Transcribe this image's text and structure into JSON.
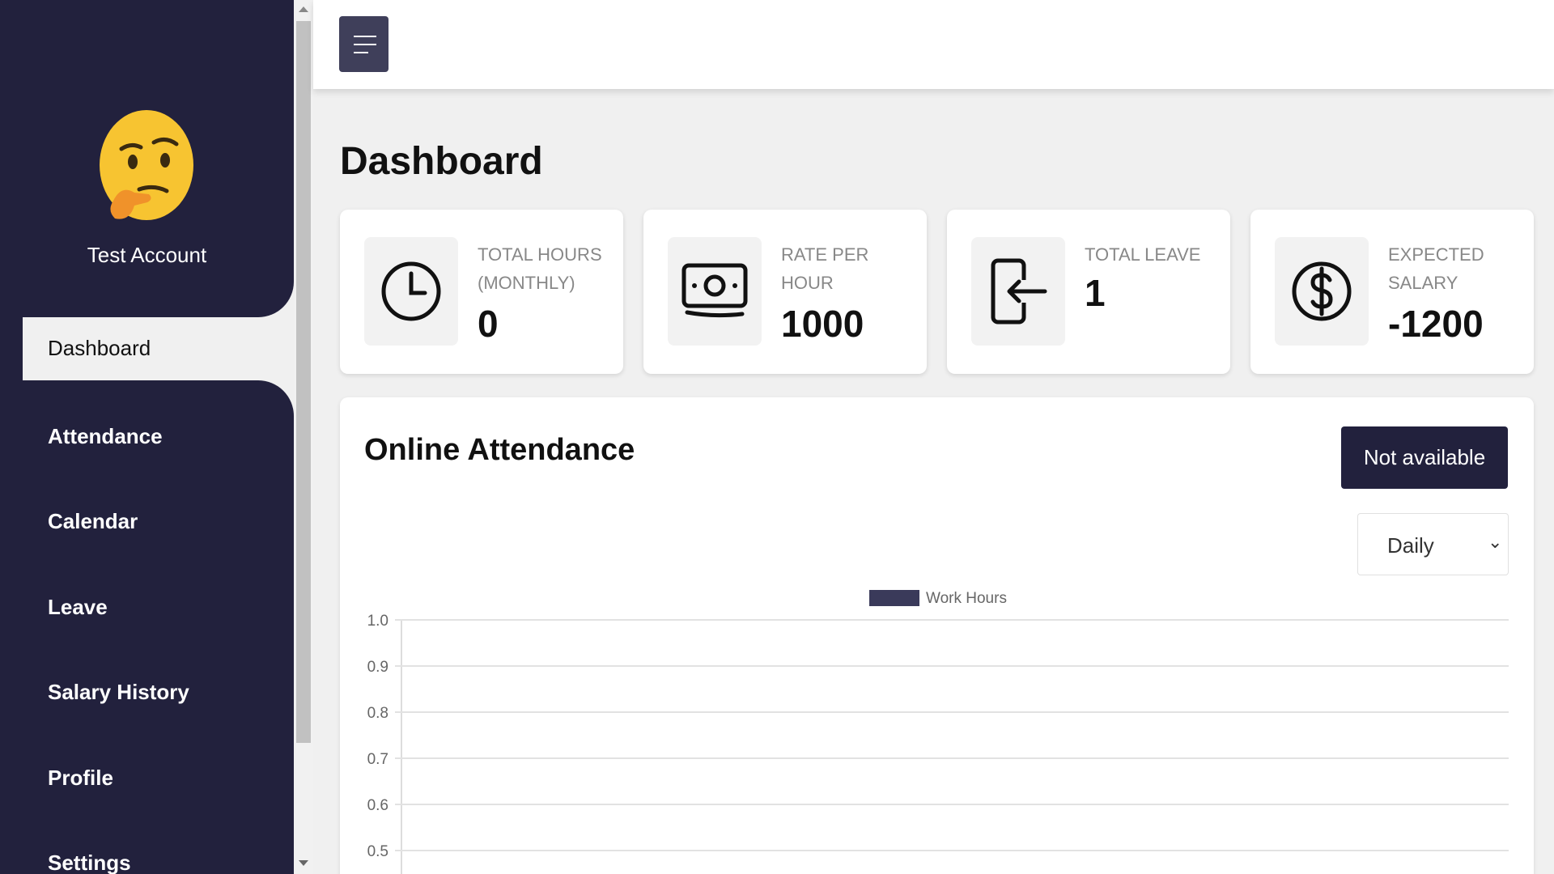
{
  "sidebar": {
    "user_name": "Test Account",
    "items": [
      {
        "label": "Dashboard",
        "active": true
      },
      {
        "label": "Attendance"
      },
      {
        "label": "Calendar"
      },
      {
        "label": "Leave"
      },
      {
        "label": "Salary History"
      },
      {
        "label": "Profile"
      },
      {
        "label": "Settings"
      }
    ]
  },
  "page": {
    "title": "Dashboard"
  },
  "cards": [
    {
      "label": "Total Hours (Monthly)",
      "value": "0",
      "icon": "clock-icon"
    },
    {
      "label": "Rate per hour",
      "value": "1000",
      "icon": "money-icon"
    },
    {
      "label": "Total Leave",
      "value": "1",
      "icon": "exit-icon"
    },
    {
      "label": "Expected Salary",
      "value": "-1200",
      "icon": "dollar-icon"
    }
  ],
  "attendance": {
    "title": "Online Attendance",
    "status_button": "Not available",
    "period_select": "Daily"
  },
  "colors": {
    "sidebar": "#22213d",
    "accent": "#3f3f5a",
    "bar": "#3a3a5a"
  },
  "chart_data": {
    "type": "bar",
    "categories": [],
    "series": [
      {
        "name": "Work Hours",
        "values": []
      }
    ],
    "y_ticks": [
      "1.0",
      "0.9",
      "0.8",
      "0.7",
      "0.6",
      "0.5"
    ],
    "ylim": [
      0,
      1.0
    ],
    "legend": "top-center",
    "grid": true
  }
}
